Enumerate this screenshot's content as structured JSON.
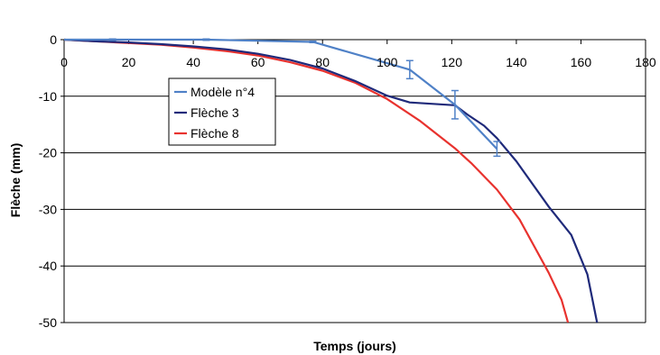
{
  "chart_data": {
    "type": "line",
    "title": "",
    "xlabel": "Temps (jours)",
    "ylabel": "Flèche (mm)",
    "xlim": [
      0,
      180
    ],
    "ylim": [
      -50,
      0
    ],
    "x_ticks": [
      "0",
      "20",
      "40",
      "60",
      "80",
      "100",
      "120",
      "140",
      "160",
      "180"
    ],
    "y_ticks": [
      "0",
      "-10",
      "-20",
      "-30",
      "-40",
      "-50"
    ],
    "grid": "horizontal",
    "legend_position": "left-middle",
    "series": [
      {
        "name": "Modèle n°4",
        "color": "#4f81c7",
        "marker": "dash",
        "x": [
          0,
          15,
          44,
          77,
          107,
          121,
          134
        ],
        "y": [
          0,
          0,
          0,
          -0.4,
          -5.3,
          -11.5,
          -19.3
        ],
        "error": [
          0,
          0.2,
          0.2,
          0.3,
          1.6,
          2.5,
          1.3
        ]
      },
      {
        "name": "Flèche 3",
        "color": "#1f2a7a",
        "marker": "none",
        "x": [
          0,
          10,
          20,
          30,
          40,
          50,
          60,
          70,
          80,
          90,
          100,
          107,
          121,
          125,
          130,
          134,
          140,
          150,
          157,
          162,
          165
        ],
        "y": [
          0,
          -0.3,
          -0.5,
          -0.8,
          -1.2,
          -1.7,
          -2.5,
          -3.6,
          -5.1,
          -7.3,
          -9.9,
          -11.1,
          -11.6,
          -13.3,
          -15.2,
          -17.4,
          -21.5,
          -29.5,
          -34.5,
          -41.5,
          -50
        ]
      },
      {
        "name": "Flèche 8",
        "color": "#e8322e",
        "marker": "none",
        "x": [
          0,
          10,
          20,
          30,
          40,
          50,
          60,
          70,
          80,
          90,
          100,
          110,
          121,
          126,
          134,
          141,
          150,
          154,
          156
        ],
        "y": [
          0,
          -0.3,
          -0.6,
          -0.9,
          -1.4,
          -2.0,
          -2.8,
          -4.0,
          -5.5,
          -7.6,
          -10.5,
          -14.3,
          -19.2,
          -21.8,
          -26.5,
          -31.8,
          -41.2,
          -46.0,
          -50
        ]
      }
    ]
  }
}
